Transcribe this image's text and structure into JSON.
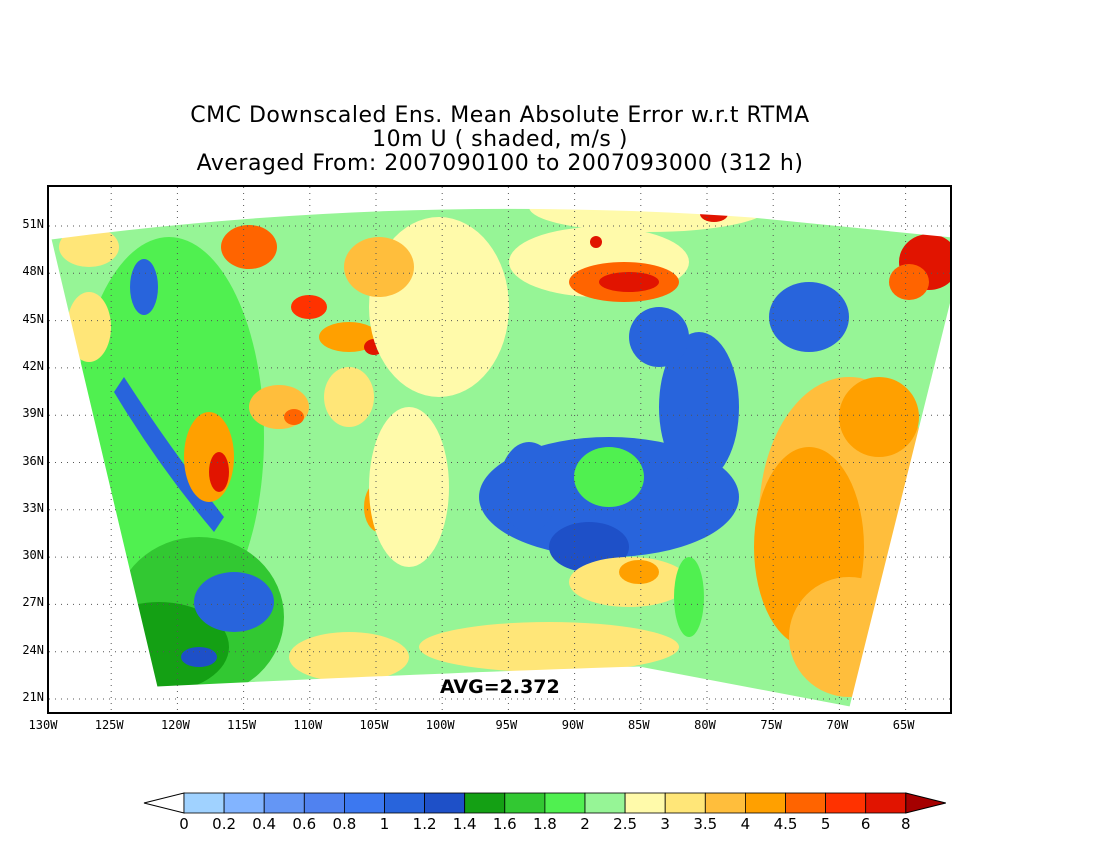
{
  "title": {
    "line1": "CMC Downscaled Ens. Mean Absolute Error w.r.t RTMA",
    "line2": "10m U ( shaded, m/s )",
    "line3": "Averaged From: 2007090100 to 2007093000 (312 h)"
  },
  "map": {
    "lat_labels": [
      "51N",
      "48N",
      "45N",
      "42N",
      "39N",
      "36N",
      "33N",
      "30N",
      "27N",
      "24N",
      "21N"
    ],
    "lon_labels": [
      "130W",
      "125W",
      "120W",
      "115W",
      "110W",
      "105W",
      "100W",
      "95W",
      "90W",
      "85W",
      "80W",
      "75W",
      "70W",
      "65W"
    ],
    "avg_text": "AVG=2.372",
    "grid": "dotted"
  },
  "colorbar": {
    "labels": [
      "0",
      "0.2",
      "0.4",
      "0.6",
      "0.8",
      "1",
      "1.2",
      "1.4",
      "1.6",
      "1.8",
      "2",
      "2.5",
      "3",
      "3.5",
      "4",
      "4.5",
      "5",
      "6",
      "8"
    ],
    "colors": [
      "#a0d2ff",
      "#82b4ff",
      "#6496f5",
      "#5082f0",
      "#3c78f0",
      "#2864dc",
      "#1e50c8",
      "#14a014",
      "#32c832",
      "#50f050",
      "#96f596",
      "#fffaaa",
      "#ffe678",
      "#ffbe3c",
      "#ffa000",
      "#ff6400",
      "#ff3200",
      "#e11400",
      "#a50000"
    ],
    "under_color": "#ffffff",
    "over_color": "#a50000"
  }
}
